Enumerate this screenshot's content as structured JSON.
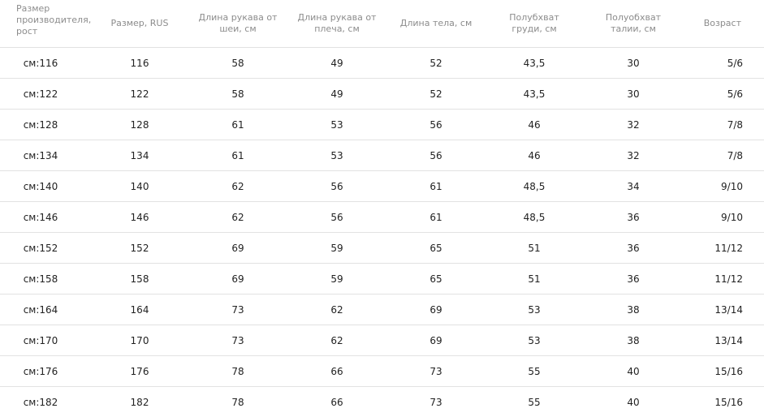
{
  "table": {
    "headers": [
      "Размер\nпроизводителя,\nрост",
      "Размер, RUS",
      "Длина рукава от\nшеи, см",
      "Длина рукава от\nплеча, см",
      "Длина тела, см",
      "Полубхват\nгруди, см",
      "Полуобхват\nталии, см",
      "Возраст"
    ],
    "rows": [
      [
        "см:116",
        "116",
        "58",
        "49",
        "52",
        "43,5",
        "30",
        "5/6"
      ],
      [
        "см:122",
        "122",
        "58",
        "49",
        "52",
        "43,5",
        "30",
        "5/6"
      ],
      [
        "см:128",
        "128",
        "61",
        "53",
        "56",
        "46",
        "32",
        "7/8"
      ],
      [
        "см:134",
        "134",
        "61",
        "53",
        "56",
        "46",
        "32",
        "7/8"
      ],
      [
        "см:140",
        "140",
        "62",
        "56",
        "61",
        "48,5",
        "34",
        "9/10"
      ],
      [
        "см:146",
        "146",
        "62",
        "56",
        "61",
        "48,5",
        "36",
        "9/10"
      ],
      [
        "см:152",
        "152",
        "69",
        "59",
        "65",
        "51",
        "36",
        "11/12"
      ],
      [
        "см:158",
        "158",
        "69",
        "59",
        "65",
        "51",
        "36",
        "11/12"
      ],
      [
        "см:164",
        "164",
        "73",
        "62",
        "69",
        "53",
        "38",
        "13/14"
      ],
      [
        "см:170",
        "170",
        "73",
        "62",
        "69",
        "53",
        "38",
        "13/14"
      ],
      [
        "см:176",
        "176",
        "78",
        "66",
        "73",
        "55",
        "40",
        "15/16"
      ],
      [
        "см:182",
        "182",
        "78",
        "66",
        "73",
        "55",
        "40",
        "15/16"
      ]
    ]
  }
}
